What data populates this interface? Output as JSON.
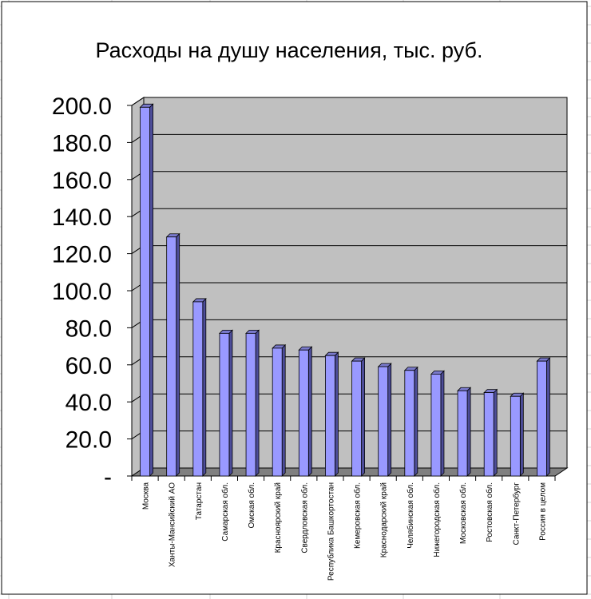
{
  "chart_data": {
    "type": "bar",
    "title": "Расходы на душу населения, тыс. руб.",
    "xlabel": "",
    "ylabel": "",
    "ylim": [
      0,
      200
    ],
    "yticks": [
      0,
      20,
      40,
      60,
      80,
      100,
      120,
      140,
      160,
      180,
      200
    ],
    "ytick_labels": [
      "-",
      "20.0",
      "40.0",
      "60.0",
      "80.0",
      "100.0",
      "120.0",
      "140.0",
      "160.0",
      "180.0",
      "200.0"
    ],
    "grid": true,
    "legend": "none",
    "categories": [
      "Москва",
      "Ханты-Мансийский АО",
      "Татарстан",
      "Самарская обл.",
      "Омская обл.",
      "Красноярский край",
      "Свердловская обл.",
      "Республика Башкортостан",
      "Кемеровская обл.",
      "Краснодарский край",
      "Челябинская обл.",
      "Нижегородская обл.",
      "Московская обл.",
      "Ростовская обл.",
      "Санкт-Петербург",
      "Россия в целом"
    ],
    "values": [
      199,
      129,
      94,
      77,
      77,
      69,
      68,
      65,
      62,
      59,
      57,
      55,
      46,
      45,
      43,
      62
    ],
    "colors": {
      "bar_front": "#9999ff",
      "bar_side": "#4d4d99",
      "bar_top": "#7a7acc",
      "plot_wall": "#c0c0c0",
      "floor": "#808080",
      "gridline": "#000000",
      "sheet_grid": "#d4d4d4"
    }
  }
}
